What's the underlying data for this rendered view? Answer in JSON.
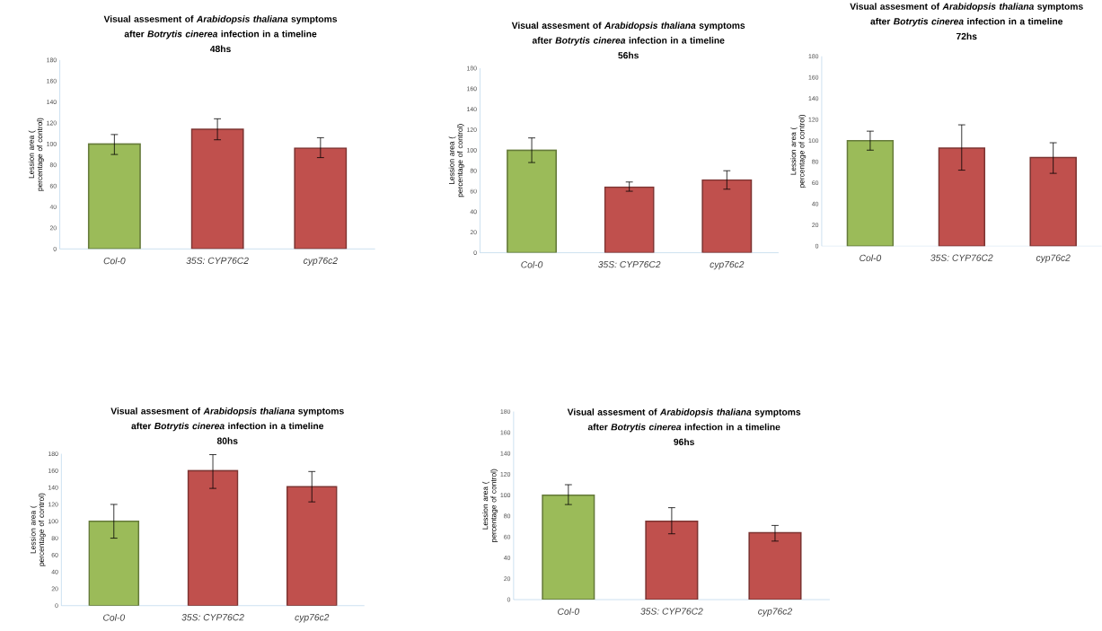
{
  "chart_data": [
    {
      "type": "bar",
      "title": "Visual assesment of *Arabidopsis thaliana* symptoms after *Botrytis cinerea* infection in a timeline",
      "subtitle": "48hs",
      "ylabel": "Lession area ( percentage of control)",
      "categories": [
        "Col-0",
        "35S: CYP76C2",
        "cyp76c2"
      ],
      "values": [
        100,
        114,
        96
      ],
      "colors": [
        "#9bbb59",
        "#c0504d",
        "#c0504d"
      ],
      "errors": [
        [
          90,
          109
        ],
        [
          104,
          124
        ],
        [
          87,
          106
        ]
      ],
      "ylim": [
        0,
        180
      ],
      "yticks": [
        0,
        20,
        40,
        60,
        80,
        100,
        120,
        140,
        160,
        180
      ]
    },
    {
      "type": "bar",
      "title": "Visual assesment of *Arabidopsis thaliana* symptoms after *Botrytis cinerea* infection in a timeline",
      "subtitle": "56hs",
      "ylabel": "Lession area ( percentage of control)",
      "categories": [
        "Col-0",
        "35S: CYP76C2",
        "cyp76c2"
      ],
      "values": [
        100,
        64,
        71
      ],
      "colors": [
        "#9bbb59",
        "#c0504d",
        "#c0504d"
      ],
      "errors": [
        [
          88,
          112
        ],
        [
          60,
          69
        ],
        [
          62,
          80
        ]
      ],
      "ylim": [
        0,
        180
      ],
      "yticks": [
        0,
        20,
        40,
        60,
        80,
        100,
        120,
        140,
        160,
        180
      ]
    },
    {
      "type": "bar",
      "title": "Visual assesment of *Arabidopsis thaliana* symptoms after *Botrytis cinerea* infection in a timeline",
      "subtitle": "72hs",
      "ylabel": "Lession area ( percentage of control)",
      "categories": [
        "Col-0",
        "35S: CYP76C2",
        "cyp76c2"
      ],
      "values": [
        100,
        93,
        84
      ],
      "colors": [
        "#9bbb59",
        "#c0504d",
        "#c0504d"
      ],
      "errors": [
        [
          91,
          109
        ],
        [
          72,
          115
        ],
        [
          69,
          98
        ]
      ],
      "ylim": [
        0,
        180
      ],
      "yticks": [
        0,
        20,
        40,
        60,
        80,
        100,
        120,
        140,
        160,
        180
      ]
    },
    {
      "type": "bar",
      "title": "Visual assesment of *Arabidopsis thaliana* symptoms after *Botrytis cinerea* infection in a timeline",
      "subtitle": "80hs",
      "ylabel": "Lession area ( percentage of control)",
      "categories": [
        "Col-0",
        "35S: CYP76C2",
        "cyp76c2"
      ],
      "values": [
        100,
        160,
        141
      ],
      "colors": [
        "#9bbb59",
        "#c0504d",
        "#c0504d"
      ],
      "errors": [
        [
          80,
          120
        ],
        [
          139,
          179
        ],
        [
          123,
          159
        ]
      ],
      "ylim": [
        0,
        180
      ],
      "yticks": [
        0,
        20,
        40,
        60,
        80,
        100,
        120,
        140,
        160,
        180
      ]
    },
    {
      "type": "bar",
      "title": "Visual assesment of *Arabidopsis thaliana* symptoms after *Botrytis cinerea* infection in a timeline",
      "subtitle": "96hs",
      "ylabel": "Lession area ( percentage of control)",
      "categories": [
        "Col-0",
        "35S: CYP76C2",
        "cyp76c2"
      ],
      "values": [
        100,
        75,
        64
      ],
      "colors": [
        "#9bbb59",
        "#c0504d",
        "#c0504d"
      ],
      "errors": [
        [
          91,
          110
        ],
        [
          63,
          88
        ],
        [
          56,
          71
        ]
      ],
      "ylim": [
        0,
        180
      ],
      "yticks": [
        0,
        20,
        40,
        60,
        80,
        100,
        120,
        140,
        160,
        180
      ]
    }
  ]
}
